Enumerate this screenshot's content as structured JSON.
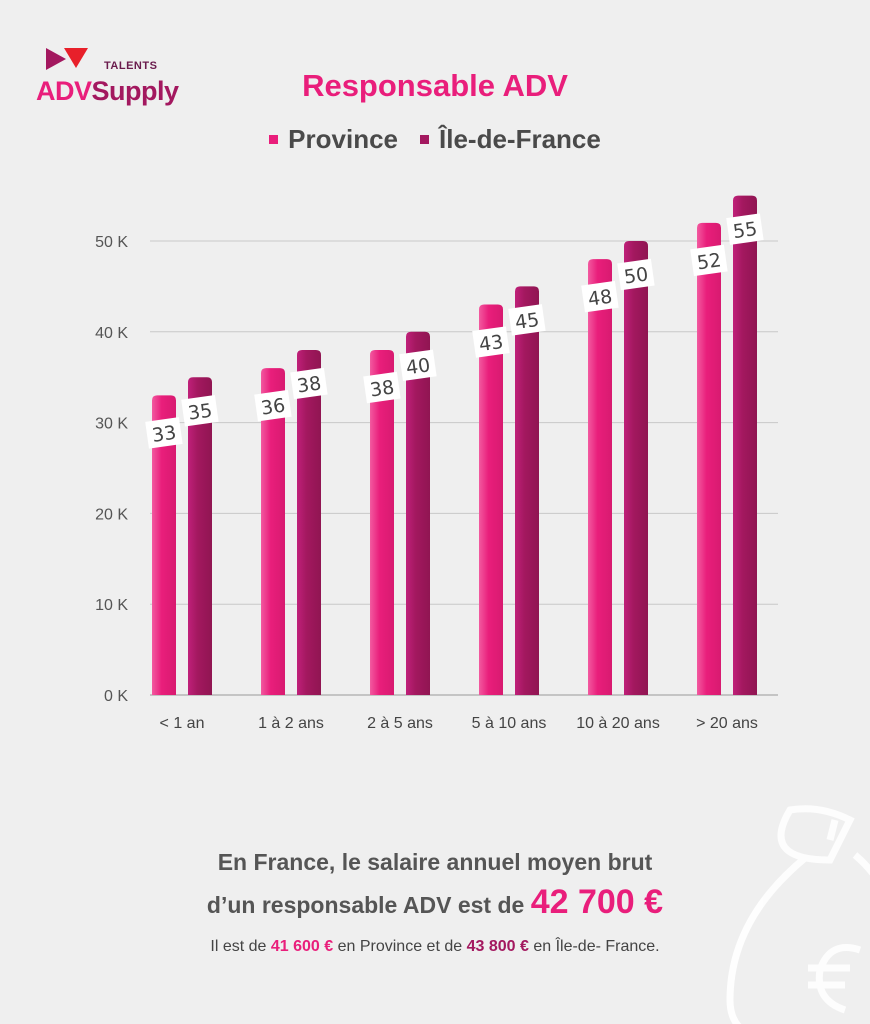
{
  "logo": {
    "top": "TALENTS",
    "brand_a": "ADV",
    "brand_b": "Supply"
  },
  "chart_data": {
    "type": "bar",
    "title": "Responsable ADV",
    "categories": [
      "< 1 an",
      "1 à 2 ans",
      "2 à 5 ans",
      "5 à 10 ans",
      "10 à 20 ans",
      ">  20 ans"
    ],
    "series": [
      {
        "name": "Province",
        "values": [
          33,
          36,
          38,
          43,
          48,
          52
        ],
        "color": "#e91e7b"
      },
      {
        "name": "Île-de-France",
        "values": [
          35,
          38,
          40,
          45,
          50,
          55
        ],
        "color": "#a3185f"
      }
    ],
    "yticks": [
      "0 K",
      "10 K",
      "20 K",
      "30 K",
      "40 K",
      "50 K"
    ],
    "ytick_values": [
      0,
      10,
      20,
      30,
      40,
      50
    ],
    "ylim": [
      0,
      55
    ],
    "grid": true,
    "legend": "top"
  },
  "summary": {
    "line1": "En France, le salaire annuel moyen brut",
    "line2": "d’un responsable ADV est de",
    "amount": "42 700 €"
  },
  "detail": {
    "a": "Il est de",
    "province": "41 600 €",
    "b": "en Province et de",
    "idf": "43 800 €",
    "c": "en Île-de- France."
  }
}
